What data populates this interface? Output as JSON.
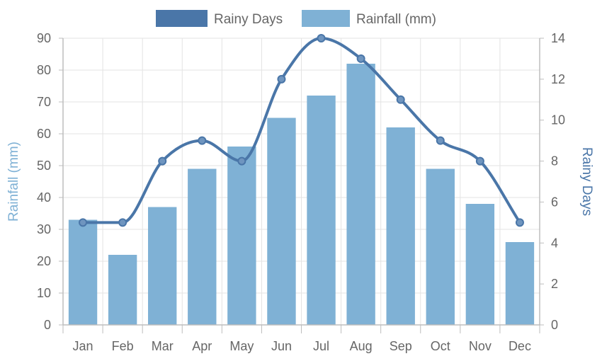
{
  "chart_data": {
    "type": "bar",
    "categories": [
      "Jan",
      "Feb",
      "Mar",
      "Apr",
      "May",
      "Jun",
      "Jul",
      "Aug",
      "Sep",
      "Oct",
      "Nov",
      "Dec"
    ],
    "series": [
      {
        "name": "Rainfall (mm)",
        "type": "bar",
        "axis": "left",
        "color": "#7fb1d5",
        "values": [
          33,
          22,
          37,
          49,
          56,
          65,
          72,
          82,
          62,
          49,
          38,
          26
        ]
      },
      {
        "name": "Rainy Days",
        "type": "line",
        "axis": "right",
        "smooth": true,
        "color": "#4a76a8",
        "values": [
          5,
          5,
          8,
          9,
          8,
          12,
          14,
          13,
          11,
          9,
          8,
          5
        ]
      }
    ],
    "y_left": {
      "label": "Rainfall (mm)",
      "min": 0,
      "max": 90,
      "step": 10,
      "color": "#7fb1d5"
    },
    "y_right": {
      "label": "Rainy Days",
      "min": 0,
      "max": 14,
      "step": 2,
      "color": "#4a76a8"
    },
    "legend": {
      "position": "top-center",
      "items": [
        "Rainy Days",
        "Rainfall (mm)"
      ]
    },
    "grid": true
  }
}
